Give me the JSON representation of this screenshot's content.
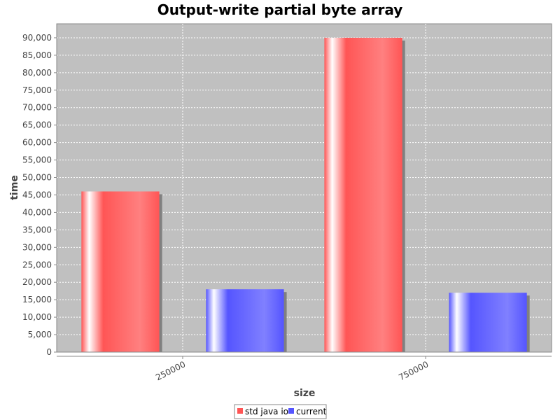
{
  "chart_data": {
    "type": "bar",
    "title": "Output-write partial byte array",
    "xlabel": "size",
    "ylabel": "time",
    "categories": [
      "250000",
      "750000"
    ],
    "series": [
      {
        "name": "std java io",
        "values": [
          46000,
          90000
        ],
        "color": "#ff5555"
      },
      {
        "name": "current",
        "values": [
          18000,
          17000
        ],
        "color": "#5555ff"
      }
    ],
    "ylim": [
      0,
      94000
    ],
    "yticks": [
      0,
      5000,
      10000,
      15000,
      20000,
      25000,
      30000,
      35000,
      40000,
      45000,
      50000,
      55000,
      60000,
      65000,
      70000,
      75000,
      80000,
      85000,
      90000
    ],
    "grid": true,
    "legend_position": "bottom-center",
    "plot_background": "#c0c0c0"
  }
}
